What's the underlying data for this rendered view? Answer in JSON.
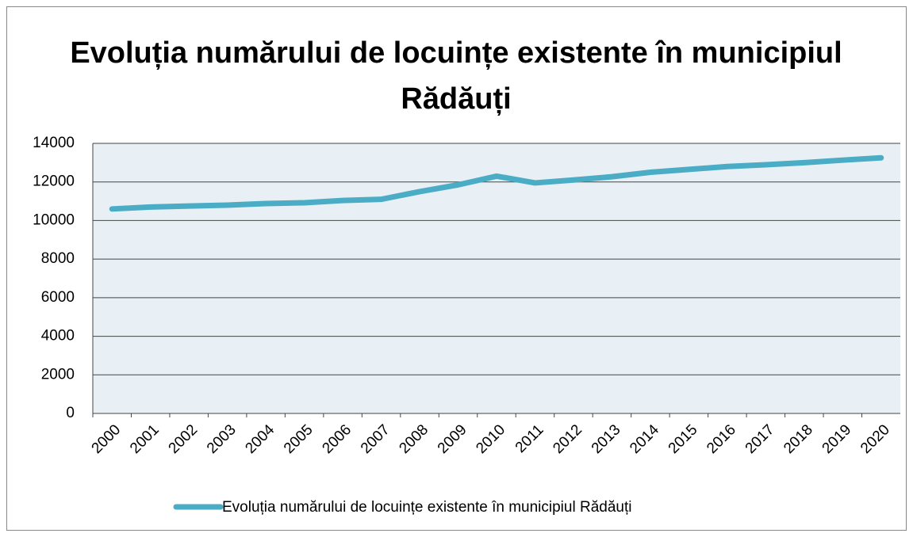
{
  "chart_data": {
    "type": "line",
    "title": "Evoluția numărului de locuințe existente în municipiul Rădăuți",
    "categories": [
      "2000",
      "2001",
      "2002",
      "2003",
      "2004",
      "2005",
      "2006",
      "2007",
      "2008",
      "2009",
      "2010",
      "2011",
      "2012",
      "2013",
      "2014",
      "2015",
      "2016",
      "2017",
      "2018",
      "2019",
      "2020"
    ],
    "series": [
      {
        "name": "Evoluția numărului de locuințe existente în municipiul Rădăuți",
        "color": "#4bacc6",
        "values": [
          10600,
          10700,
          10750,
          10800,
          10880,
          10920,
          11040,
          11100,
          11500,
          11850,
          12300,
          11950,
          12100,
          12270,
          12500,
          12650,
          12800,
          12890,
          13000,
          13130,
          13250
        ]
      }
    ],
    "ylim": [
      0,
      14000
    ],
    "yticks": [
      0,
      2000,
      4000,
      6000,
      8000,
      10000,
      12000,
      14000
    ],
    "grid": true,
    "legend": "bottom"
  }
}
